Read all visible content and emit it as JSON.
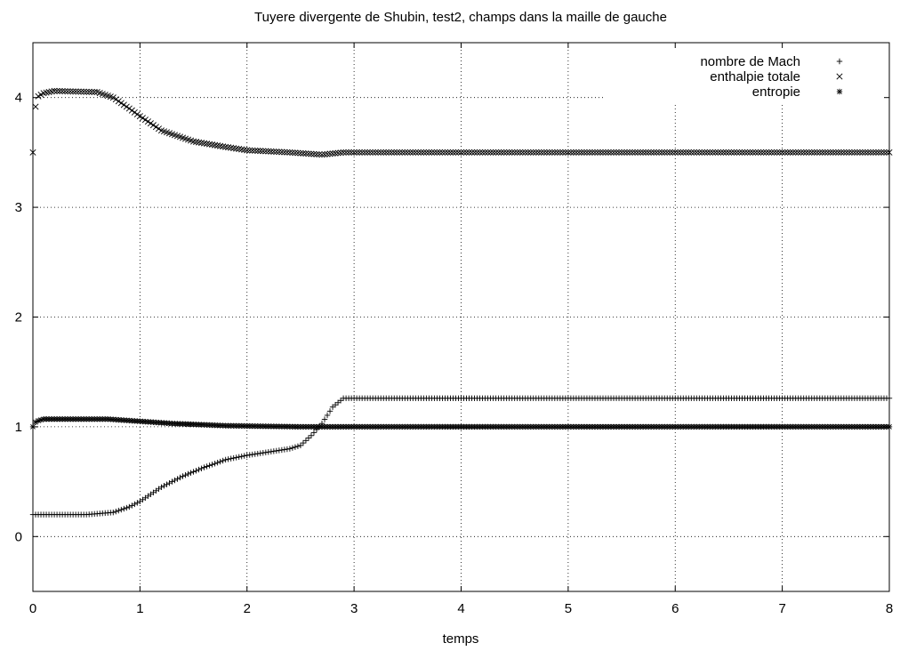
{
  "chart_data": {
    "type": "scatter",
    "title": "Tuyere divergente de Shubin, test2, champs dans la maille de gauche",
    "xlabel": "temps",
    "ylabel": "",
    "xlim": [
      0,
      8
    ],
    "ylim": [
      -0.5,
      4.5
    ],
    "xticks": [
      0,
      1,
      2,
      3,
      4,
      5,
      6,
      7,
      8
    ],
    "yticks": [
      0,
      1,
      2,
      3,
      4
    ],
    "grid": true,
    "legend_position": "top-right",
    "series": [
      {
        "name": "nombre de Mach",
        "marker": "plus",
        "keypoints": [
          [
            0,
            0.2
          ],
          [
            0.5,
            0.2
          ],
          [
            0.75,
            0.22
          ],
          [
            0.9,
            0.27
          ],
          [
            1.0,
            0.32
          ],
          [
            1.2,
            0.45
          ],
          [
            1.4,
            0.55
          ],
          [
            1.6,
            0.63
          ],
          [
            1.8,
            0.7
          ],
          [
            2.0,
            0.74
          ],
          [
            2.2,
            0.77
          ],
          [
            2.4,
            0.8
          ],
          [
            2.5,
            0.83
          ],
          [
            2.6,
            0.92
          ],
          [
            2.7,
            1.03
          ],
          [
            2.8,
            1.18
          ],
          [
            2.9,
            1.26
          ],
          [
            8,
            1.26
          ]
        ]
      },
      {
        "name": "enthalpie totale",
        "marker": "cross",
        "keypoints": [
          [
            0,
            3.5
          ],
          [
            0.03,
            4.0
          ],
          [
            0.1,
            4.04
          ],
          [
            0.2,
            4.06
          ],
          [
            0.6,
            4.05
          ],
          [
            0.75,
            4.0
          ],
          [
            0.9,
            3.9
          ],
          [
            1.0,
            3.83
          ],
          [
            1.2,
            3.7
          ],
          [
            1.5,
            3.6
          ],
          [
            1.8,
            3.55
          ],
          [
            2.0,
            3.52
          ],
          [
            2.4,
            3.5
          ],
          [
            2.7,
            3.48
          ],
          [
            2.8,
            3.49
          ],
          [
            2.9,
            3.5
          ],
          [
            8,
            3.5
          ]
        ]
      },
      {
        "name": "entropie",
        "marker": "star",
        "keypoints": [
          [
            0,
            1.0
          ],
          [
            0.03,
            1.05
          ],
          [
            0.1,
            1.07
          ],
          [
            0.7,
            1.07
          ],
          [
            1.0,
            1.05
          ],
          [
            1.3,
            1.03
          ],
          [
            1.8,
            1.01
          ],
          [
            2.5,
            1.0
          ],
          [
            8,
            1.0
          ]
        ]
      }
    ]
  }
}
